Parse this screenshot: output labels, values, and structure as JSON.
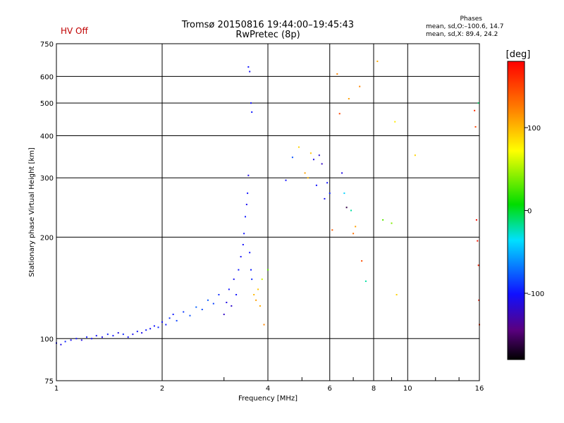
{
  "status": {
    "hv_label": "HV Off",
    "hv_color": "#c00000"
  },
  "header": {
    "title_line1": "Tromsø 20150816 19:44:00–19:45:43",
    "title_line2": "RwPretec (8p)"
  },
  "phases": {
    "title": "Phases",
    "o_line": "mean, sd,O:–100.6, 14.7",
    "x_line": "mean, sd,X:  89.4, 24.2"
  },
  "colorbar": {
    "unit": "[deg]",
    "ticks": [
      {
        "label": "100",
        "value": 100
      },
      {
        "label": "0",
        "value": 0
      },
      {
        "label": "–100",
        "value": -100
      }
    ],
    "range": [
      -180,
      180
    ]
  },
  "chart_data": {
    "type": "scatter",
    "title": "Tromsø 20150816 19:44:00–19:45:43",
    "subtitle": "RwPretec (8p)",
    "xlabel": "Frequency [MHz]",
    "ylabel": "Stationary phase Virtual Height [km]",
    "x_scale": "log",
    "y_scale": "log",
    "xlim": [
      1,
      16
    ],
    "ylim": [
      75,
      750
    ],
    "xticks": [
      {
        "label": "1",
        "value": 1
      },
      {
        "label": "2",
        "value": 2
      },
      {
        "label": "4",
        "value": 4
      },
      {
        "label": "6",
        "value": 6
      },
      {
        "label": "8",
        "value": 8
      },
      {
        "label": "10",
        "value": 10
      },
      {
        "label": "16",
        "value": 16
      }
    ],
    "yticks": [
      {
        "label": "75",
        "value": 75
      },
      {
        "label": "100",
        "value": 100
      },
      {
        "label": "200",
        "value": 200
      },
      {
        "label": "300",
        "value": 300
      },
      {
        "label": "400",
        "value": 400
      },
      {
        "label": "500",
        "value": 500
      },
      {
        "label": "600",
        "value": 600
      },
      {
        "label": "750",
        "value": 750
      }
    ],
    "grid": true,
    "color_by": "phase [deg]",
    "points": [
      [
        1.0,
        97,
        -100
      ],
      [
        1.03,
        96,
        -110
      ],
      [
        1.06,
        98,
        -95
      ],
      [
        1.1,
        99,
        -105
      ],
      [
        1.14,
        100,
        -100
      ],
      [
        1.18,
        99,
        -112
      ],
      [
        1.22,
        101,
        -98
      ],
      [
        1.26,
        100,
        -104
      ],
      [
        1.3,
        102,
        -102
      ],
      [
        1.35,
        101,
        -108
      ],
      [
        1.4,
        103,
        -96
      ],
      [
        1.45,
        102,
        -100
      ],
      [
        1.5,
        104,
        -110
      ],
      [
        1.55,
        103,
        -94
      ],
      [
        1.6,
        101,
        -102
      ],
      [
        1.65,
        103,
        -106
      ],
      [
        1.7,
        105,
        -100
      ],
      [
        1.75,
        104,
        -108
      ],
      [
        1.8,
        106,
        -98
      ],
      [
        1.85,
        107,
        -102
      ],
      [
        1.9,
        109,
        -100
      ],
      [
        1.95,
        108,
        -95
      ],
      [
        2.0,
        112,
        -104
      ],
      [
        2.05,
        110,
        -96
      ],
      [
        2.1,
        115,
        -90
      ],
      [
        2.15,
        118,
        -98
      ],
      [
        2.2,
        113,
        -85
      ],
      [
        2.3,
        120,
        -88
      ],
      [
        2.4,
        117,
        -80
      ],
      [
        2.5,
        124,
        -75
      ],
      [
        2.6,
        122,
        -82
      ],
      [
        2.7,
        130,
        -78
      ],
      [
        2.8,
        127,
        -86
      ],
      [
        2.9,
        135,
        -92
      ],
      [
        3.0,
        118,
        -120
      ],
      [
        3.05,
        128,
        -110
      ],
      [
        3.1,
        140,
        -100
      ],
      [
        3.15,
        125,
        -118
      ],
      [
        3.2,
        150,
        -105
      ],
      [
        3.25,
        135,
        -100
      ],
      [
        3.3,
        160,
        -98
      ],
      [
        3.35,
        175,
        -104
      ],
      [
        3.4,
        190,
        -102
      ],
      [
        3.42,
        205,
        -100
      ],
      [
        3.45,
        230,
        -98
      ],
      [
        3.48,
        250,
        -105
      ],
      [
        3.5,
        270,
        -100
      ],
      [
        3.52,
        305,
        -110
      ],
      [
        3.55,
        180,
        -100
      ],
      [
        3.58,
        160,
        -96
      ],
      [
        3.6,
        150,
        -92
      ],
      [
        3.52,
        640,
        -100
      ],
      [
        3.55,
        620,
        -105
      ],
      [
        3.58,
        500,
        -102
      ],
      [
        3.6,
        470,
        -98
      ],
      [
        3.65,
        135,
        100
      ],
      [
        3.7,
        130,
        110
      ],
      [
        3.75,
        140,
        95
      ],
      [
        3.8,
        125,
        105
      ],
      [
        3.85,
        150,
        60
      ],
      [
        3.9,
        110,
        120
      ],
      [
        4.0,
        160,
        30
      ],
      [
        4.5,
        295,
        -100
      ],
      [
        4.7,
        345,
        -80
      ],
      [
        4.9,
        370,
        90
      ],
      [
        5.1,
        310,
        110
      ],
      [
        5.2,
        300,
        100
      ],
      [
        5.3,
        355,
        95
      ],
      [
        5.4,
        340,
        -110
      ],
      [
        5.5,
        285,
        -100
      ],
      [
        5.6,
        350,
        -115
      ],
      [
        5.7,
        330,
        -120
      ],
      [
        5.8,
        260,
        -105
      ],
      [
        5.9,
        290,
        -100
      ],
      [
        6.0,
        270,
        -95
      ],
      [
        6.1,
        210,
        140
      ],
      [
        6.3,
        610,
        120
      ],
      [
        6.4,
        465,
        150
      ],
      [
        6.5,
        310,
        -110
      ],
      [
        6.6,
        270,
        -40
      ],
      [
        6.7,
        245,
        -160
      ],
      [
        6.8,
        515,
        110
      ],
      [
        6.9,
        240,
        -20
      ],
      [
        7.0,
        205,
        130
      ],
      [
        7.1,
        215,
        110
      ],
      [
        7.3,
        560,
        120
      ],
      [
        7.4,
        170,
        145
      ],
      [
        7.6,
        148,
        -20
      ],
      [
        8.2,
        665,
        105
      ],
      [
        8.5,
        225,
        30
      ],
      [
        9.0,
        220,
        40
      ],
      [
        9.2,
        440,
        80
      ],
      [
        9.3,
        135,
        90
      ],
      [
        10.5,
        350,
        90
      ],
      [
        15.5,
        475,
        160
      ],
      [
        15.6,
        425,
        150
      ],
      [
        15.7,
        225,
        175
      ],
      [
        15.8,
        195,
        170
      ],
      [
        15.9,
        165,
        165
      ],
      [
        15.95,
        130,
        170
      ],
      [
        16.0,
        110,
        160
      ],
      [
        15.9,
        500,
        -10
      ]
    ]
  }
}
